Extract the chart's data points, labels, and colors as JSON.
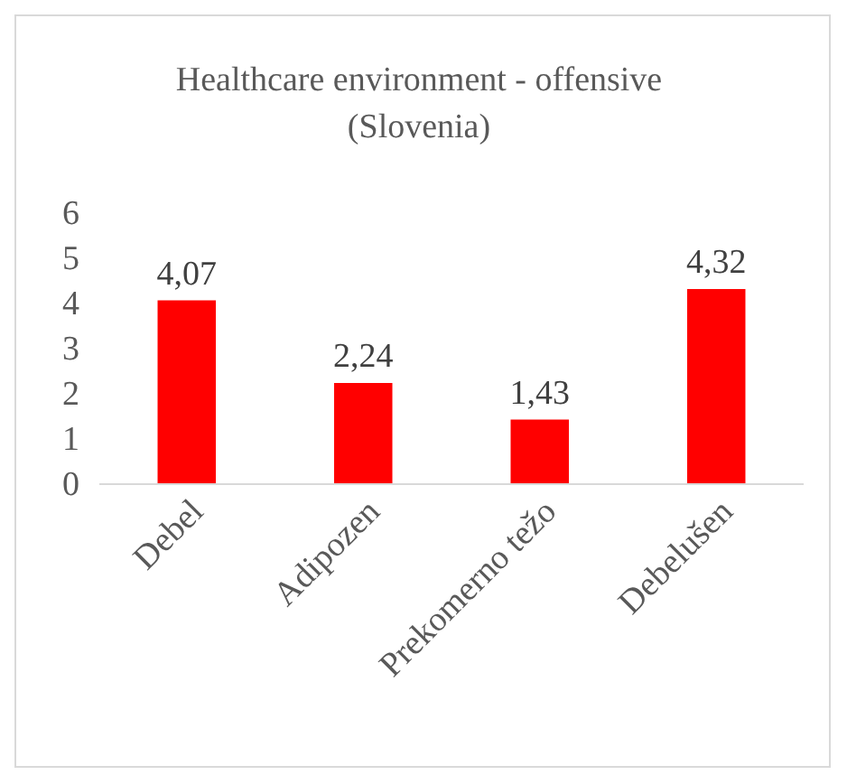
{
  "chart_data": {
    "type": "bar",
    "title": "Healthcare environment - offensive\n(Slovenia)",
    "categories": [
      "Debel",
      "Adipozen",
      "Prekomerno težo",
      "Debelušen"
    ],
    "values": [
      4.07,
      2.24,
      1.43,
      4.32
    ],
    "color": "#ff0000",
    "value_labels": [
      "4,07",
      "2,24",
      "1,43",
      "4,32"
    ],
    "ylim": [
      0,
      6
    ],
    "yticks": [
      0,
      1,
      2,
      3,
      4,
      5,
      6
    ],
    "grid": false
  }
}
